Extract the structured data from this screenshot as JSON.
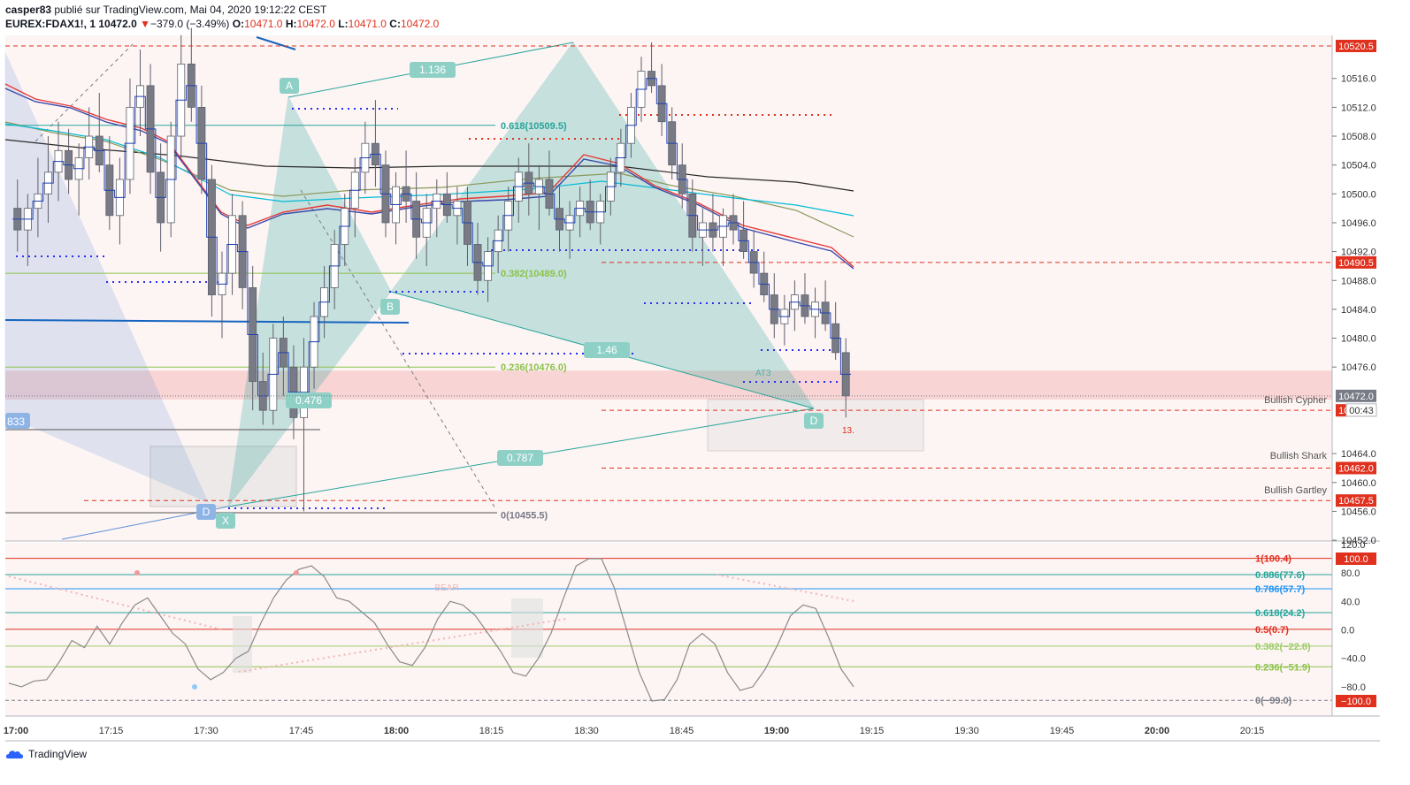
{
  "header": {
    "line1_user": "casper83",
    "line1_rest": " publié sur TradingView.com, Mai 04, 2020 19:12:22 CEST",
    "symbol": "EUREX:FDAX1!, 1",
    "last": "10472.0",
    "change": "−379.0 (−3.49%)",
    "o_label": "O:",
    "o_val": "10471.0",
    "h_label": "H:",
    "h_val": "10472.0",
    "l_label": "L:",
    "l_val": "10471.0",
    "c_label": "C:",
    "c_val": "10472.0"
  },
  "footer": {
    "brand": "TradingView"
  },
  "colors": {
    "up": "#ffffff",
    "down": "#787b86",
    "candle_line": "#5d606b",
    "pattern_fill": "#26a69a",
    "pattern_blue": "#5b8fd6",
    "red_dash": "#e0301e",
    "blue_dot": "#2a2ef5",
    "zone_red": "#f7c6c6",
    "bg_main": "#fdf3f3"
  },
  "chart_data": {
    "type": "candlestick",
    "price_range": [
      10450,
      10523
    ],
    "price_ticks": [
      "10516.0",
      "10512.0",
      "10508.0",
      "10504.0",
      "10500.0",
      "10496.0",
      "10492.0",
      "10488.0",
      "10484.0",
      "10480.0",
      "10476.0",
      "10464.0",
      "10460.0",
      "10456.0",
      "10452.0"
    ],
    "time_ticks": [
      {
        "label": "17:00",
        "bold": true
      },
      {
        "label": "17:15"
      },
      {
        "label": "17:30"
      },
      {
        "label": "17:45"
      },
      {
        "label": "18:00",
        "bold": true
      },
      {
        "label": "18:15"
      },
      {
        "label": "18:30"
      },
      {
        "label": "18:45"
      },
      {
        "label": "19:00",
        "bold": true
      },
      {
        "label": "19:15"
      },
      {
        "label": "19:30"
      },
      {
        "label": "19:45"
      },
      {
        "label": "20:00",
        "bold": true
      },
      {
        "label": "20:15"
      }
    ],
    "price_labels": [
      {
        "price": 10520.5,
        "text": "10520.5",
        "bg": "#e0301e"
      },
      {
        "price": 10490.5,
        "text": "10490.5",
        "bg": "#e0301e"
      },
      {
        "price": 10472.0,
        "text": "10472.0",
        "bg": "#787b86"
      },
      {
        "price": 10470.0,
        "text": "10470.0",
        "bg": "#e0301e"
      },
      {
        "price": 10462.0,
        "text": "10462.0",
        "bg": "#e0301e"
      },
      {
        "price": 10457.5,
        "text": "10457.5",
        "bg": "#e0301e"
      }
    ],
    "countdown": "00:43",
    "pattern_labels": [
      "Bullish Cypher",
      "Bullish Shark",
      "Bullish Gartley"
    ],
    "pattern_points": [
      "A",
      "B",
      "D",
      "X",
      "D"
    ],
    "ratios": [
      "1.136",
      "0.476",
      "1.46",
      "0.787"
    ],
    "fib_levels": [
      {
        "text": "0.618(10509.5)",
        "price": 10509.5,
        "color": "#26a69a"
      },
      {
        "text": "0.382(10489.0)",
        "price": 10489.0,
        "color": "#8bc34a"
      },
      {
        "text": "0.236(10476.0)",
        "price": 10476.0,
        "color": "#8bc34a"
      },
      {
        "text": "0(10455.5)",
        "price": 10455.5,
        "color": "#787b86"
      }
    ],
    "misc_text": [
      "833",
      "13.",
      "AT3"
    ],
    "candles": [
      [
        10498,
        10502,
        10492,
        10495
      ],
      [
        10495,
        10500,
        10490,
        10498
      ],
      [
        10498,
        10505,
        10494,
        10500
      ],
      [
        10500,
        10508,
        10496,
        10503
      ],
      [
        10503,
        10510,
        10499,
        10506
      ],
      [
        10506,
        10509,
        10500,
        10502
      ],
      [
        10502,
        10507,
        10497,
        10505
      ],
      [
        10505,
        10512,
        10502,
        10508
      ],
      [
        10508,
        10514,
        10503,
        10504
      ],
      [
        10504,
        10508,
        10495,
        10497
      ],
      [
        10497,
        10505,
        10493,
        10502
      ],
      [
        10502,
        10516,
        10500,
        10512
      ],
      [
        10512,
        10520,
        10508,
        10515
      ],
      [
        10515,
        10518,
        10500,
        10503
      ],
      [
        10503,
        10507,
        10492,
        10496
      ],
      [
        10496,
        10510,
        10494,
        10508
      ],
      [
        10508,
        10522,
        10505,
        10518
      ],
      [
        10518,
        10523,
        10510,
        10512
      ],
      [
        10512,
        10515,
        10500,
        10502
      ],
      [
        10502,
        10504,
        10483,
        10486
      ],
      [
        10486,
        10492,
        10480,
        10489
      ],
      [
        10489,
        10500,
        10486,
        10497
      ],
      [
        10497,
        10499,
        10484,
        10487
      ],
      [
        10487,
        10490,
        10470,
        10474
      ],
      [
        10474,
        10478,
        10468,
        10470
      ],
      [
        10470,
        10482,
        10468,
        10480
      ],
      [
        10480,
        10483,
        10472,
        10476
      ],
      [
        10476,
        10479,
        10466,
        10469
      ],
      [
        10469,
        10480,
        10456,
        10476
      ],
      [
        10476,
        10485,
        10473,
        10483
      ],
      [
        10483,
        10490,
        10480,
        10487
      ],
      [
        10487,
        10495,
        10484,
        10493
      ],
      [
        10493,
        10500,
        10490,
        10498
      ],
      [
        10498,
        10505,
        10494,
        10503
      ],
      [
        10503,
        10510,
        10500,
        10507
      ],
      [
        10507,
        10513,
        10501,
        10504
      ],
      [
        10504,
        10506,
        10494,
        10496
      ],
      [
        10496,
        10503,
        10493,
        10501
      ],
      [
        10501,
        10506,
        10496,
        10499
      ],
      [
        10499,
        10503,
        10491,
        10494
      ],
      [
        10494,
        10500,
        10490,
        10498
      ],
      [
        10498,
        10502,
        10494,
        10500
      ],
      [
        10500,
        10503,
        10496,
        10497
      ],
      [
        10497,
        10501,
        10493,
        10499
      ],
      [
        10499,
        10501,
        10490,
        10493
      ],
      [
        10493,
        10496,
        10486,
        10488
      ],
      [
        10488,
        10494,
        10485,
        10492
      ],
      [
        10492,
        10497,
        10489,
        10495
      ],
      [
        10495,
        10501,
        10492,
        10499
      ],
      [
        10499,
        10505,
        10496,
        10503
      ],
      [
        10503,
        10507,
        10497,
        10500
      ],
      [
        10500,
        10504,
        10495,
        10502
      ],
      [
        10502,
        10506,
        10497,
        10498
      ],
      [
        10498,
        10501,
        10492,
        10495
      ],
      [
        10495,
        10499,
        10491,
        10497
      ],
      [
        10497,
        10501,
        10494,
        10499
      ],
      [
        10499,
        10502,
        10495,
        10496
      ],
      [
        10496,
        10500,
        10493,
        10499
      ],
      [
        10499,
        10505,
        10497,
        10503
      ],
      [
        10503,
        10509,
        10501,
        10507
      ],
      [
        10507,
        10514,
        10505,
        10512
      ],
      [
        10512,
        10519,
        10510,
        10517
      ],
      [
        10517,
        10521,
        10514,
        10515
      ],
      [
        10515,
        10518,
        10508,
        10510
      ],
      [
        10510,
        10512,
        10502,
        10504
      ],
      [
        10504,
        10507,
        10498,
        10500
      ],
      [
        10500,
        10502,
        10492,
        10494
      ],
      [
        10494,
        10498,
        10490,
        10496
      ],
      [
        10496,
        10500,
        10492,
        10494
      ],
      [
        10494,
        10498,
        10490,
        10497
      ],
      [
        10497,
        10500,
        10493,
        10495
      ],
      [
        10495,
        10499,
        10491,
        10492
      ],
      [
        10492,
        10495,
        10487,
        10489
      ],
      [
        10489,
        10492,
        10485,
        10486
      ],
      [
        10486,
        10489,
        10480,
        10482
      ],
      [
        10482,
        10486,
        10479,
        10484
      ],
      [
        10484,
        10488,
        10481,
        10486
      ],
      [
        10486,
        10489,
        10482,
        10483
      ],
      [
        10483,
        10487,
        10480,
        10485
      ],
      [
        10485,
        10488,
        10481,
        10482
      ],
      [
        10482,
        10485,
        10477,
        10478
      ],
      [
        10478,
        10480,
        10469,
        10472
      ]
    ],
    "oscillator": {
      "range": [
        -100,
        120
      ],
      "ticks": [
        "120.0",
        "80.0",
        "40.0",
        "0.0",
        "−40.0",
        "−80.0"
      ],
      "levels": [
        {
          "value": 100.4,
          "text": "1(100.4)",
          "color": "#e0301e"
        },
        {
          "value": 77.6,
          "text": "0.886(77.6)",
          "color": "#26a69a"
        },
        {
          "value": 57.7,
          "text": "0.786(57.7)",
          "color": "#2196f3"
        },
        {
          "value": 24.2,
          "text": "0.618(24.2)",
          "color": "#26a69a"
        },
        {
          "value": 0.7,
          "text": "0.5(0.7)",
          "color": "#e0301e"
        },
        {
          "value": -22.8,
          "text": "0.382(−22.8)",
          "color": "#9ccc65"
        },
        {
          "value": -51.9,
          "text": "0.236(−51.9)",
          "color": "#8bc34a"
        },
        {
          "value": -99.0,
          "text": "0(−99.0)",
          "color": "#787b86"
        }
      ],
      "badges": [
        {
          "value": 100,
          "text": "100.0"
        },
        {
          "value": -100,
          "text": "−100.0"
        }
      ],
      "bear_text": "BEAR",
      "values": [
        -75,
        -80,
        -72,
        -70,
        -45,
        -15,
        -25,
        5,
        -20,
        10,
        35,
        45,
        20,
        -5,
        -20,
        -55,
        -70,
        -60,
        -40,
        -30,
        10,
        45,
        70,
        85,
        90,
        75,
        45,
        40,
        25,
        10,
        -20,
        -45,
        -50,
        -25,
        15,
        40,
        35,
        20,
        -5,
        -30,
        -60,
        -65,
        -40,
        -5,
        45,
        90,
        100,
        100,
        60,
        0,
        -60,
        -100,
        -98,
        -70,
        -20,
        -5,
        -20,
        -60,
        -85,
        -80,
        -55,
        -20,
        20,
        35,
        30,
        -10,
        -55,
        -80
      ]
    }
  }
}
